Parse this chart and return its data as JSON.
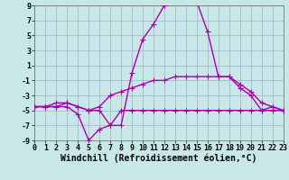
{
  "background_color": "#c8e8e8",
  "grid_color": "#aaaacc",
  "line_color": "#aa00aa",
  "xlabel": "Windchill (Refroidissement éolien,°C)",
  "xlim": [
    0,
    23
  ],
  "ylim": [
    -9,
    9
  ],
  "xticks": [
    0,
    1,
    2,
    3,
    4,
    5,
    6,
    7,
    8,
    9,
    10,
    11,
    12,
    13,
    14,
    15,
    16,
    17,
    18,
    19,
    20,
    21,
    22,
    23
  ],
  "yticks": [
    -9,
    -7,
    -5,
    -3,
    -1,
    1,
    3,
    5,
    7,
    9
  ],
  "line1_x": [
    0,
    1,
    2,
    3,
    4,
    5,
    6,
    7,
    8,
    9,
    10,
    11,
    12,
    13,
    14,
    15,
    16,
    17,
    18,
    19,
    20,
    21,
    22,
    23
  ],
  "line1_y": [
    -4.5,
    -4.5,
    -4.5,
    -4.5,
    -5.5,
    -9,
    -7.5,
    -7,
    -5,
    -5,
    -5,
    -5,
    -5,
    -5,
    -5,
    -5,
    -5,
    -5,
    -5,
    -5,
    -5,
    -5,
    -5,
    -5
  ],
  "line2_x": [
    0,
    1,
    2,
    3,
    4,
    5,
    6,
    7,
    8,
    9,
    10,
    11,
    12,
    13,
    14,
    15,
    16,
    17,
    18,
    19,
    20,
    21,
    22,
    23
  ],
  "line2_y": [
    -4.5,
    -4.5,
    -4.5,
    -4,
    -4.5,
    -5,
    -4.5,
    -3,
    -2.5,
    -2,
    -1.5,
    -1,
    -1,
    -0.5,
    -0.5,
    -0.5,
    -0.5,
    -0.5,
    -0.5,
    -2,
    -3,
    -5,
    -4.5,
    -5
  ],
  "line3_x": [
    0,
    1,
    2,
    3,
    4,
    5,
    6,
    7,
    8,
    9,
    10,
    11,
    12,
    13,
    14,
    15,
    16,
    17,
    18,
    19,
    20,
    21,
    22,
    23
  ],
  "line3_y": [
    -4.5,
    -4.5,
    -4,
    -4,
    -4.5,
    -5,
    -5,
    -7,
    -7,
    0,
    4.5,
    6.5,
    9,
    9.5,
    9.5,
    9.5,
    5.5,
    -0.5,
    -0.5,
    -1.5,
    -2.5,
    -4,
    -4.5,
    -5
  ],
  "marker": "+",
  "markersize": 4,
  "linewidth": 1.0,
  "tick_fontsize": 6,
  "xlabel_fontsize": 7
}
